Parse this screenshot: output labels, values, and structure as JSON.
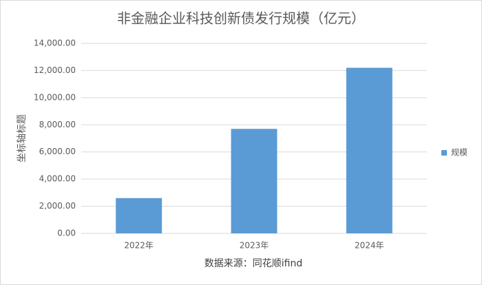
{
  "chart_data": {
    "type": "bar",
    "title": "非金融企业科技创新债发行规模（亿元）",
    "y_label": "坐标轴标题",
    "x_label": "数据来源：同花顺ifind",
    "categories": [
      "2022年",
      "2023年",
      "2024年"
    ],
    "series": [
      {
        "name": "规模",
        "color": "#5b9bd5",
        "values": [
          2600,
          7700,
          12200
        ]
      }
    ],
    "ylim": [
      0,
      14000
    ],
    "yticks": [
      {
        "value": 0,
        "label": "0.00"
      },
      {
        "value": 2000,
        "label": "2,000.00"
      },
      {
        "value": 4000,
        "label": "4,000.00"
      },
      {
        "value": 6000,
        "label": "6,000.00"
      },
      {
        "value": 8000,
        "label": "8,000.00"
      },
      {
        "value": 10000,
        "label": "10,000.00"
      },
      {
        "value": 12000,
        "label": "12,000.00"
      },
      {
        "value": 14000,
        "label": "14,000.00"
      }
    ],
    "grid": true,
    "legend": "right"
  }
}
